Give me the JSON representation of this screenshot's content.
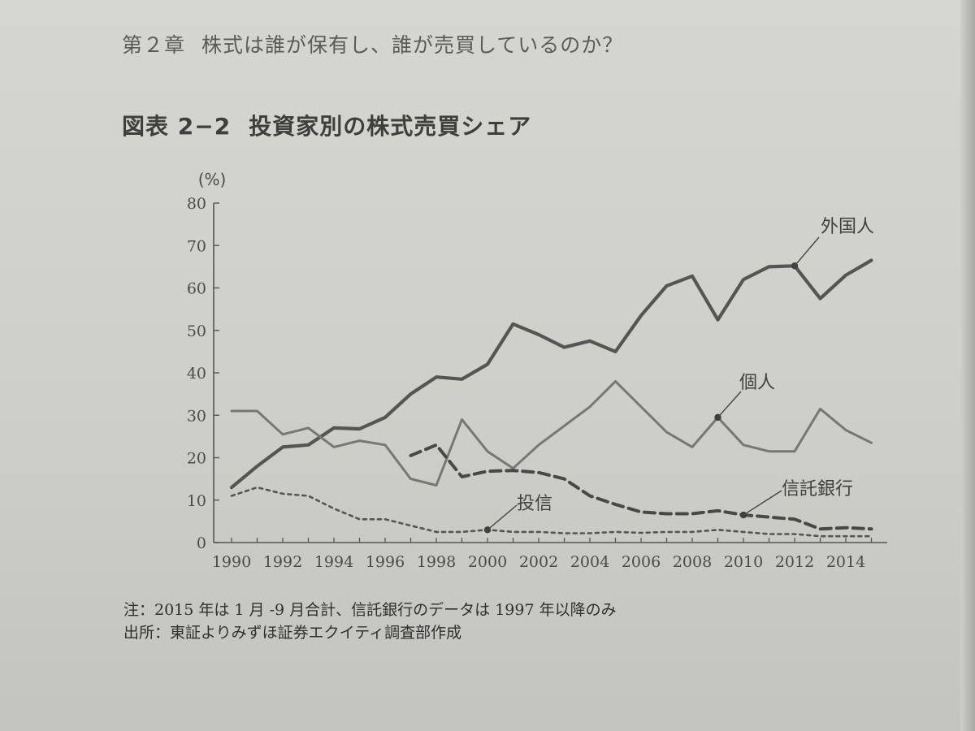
{
  "page": {
    "running_head": {
      "chapter": "第２章",
      "title": "株式は誰が保有し、誰が売買しているのか？"
    },
    "figure": {
      "number": "図表 2−2",
      "title": "投資家別の株式売買シェア"
    },
    "notes": [
      "注：2015 年は 1 月 -9 月合計、信託銀行のデータは 1997 年以降のみ",
      "出所：東証よりみずほ証券エクイティ調査部作成"
    ]
  },
  "chart_data": {
    "type": "line",
    "title": "投資家別の株式売買シェア",
    "xlabel": "",
    "ylabel": "(%)",
    "xlim": [
      1990,
      2015
    ],
    "ylim": [
      0,
      80
    ],
    "x_ticks": [
      "1990",
      "1992",
      "1994",
      "1996",
      "1998",
      "2000",
      "2002",
      "2004",
      "2006",
      "2008",
      "2010",
      "2012",
      "2014"
    ],
    "y_ticks": [
      "0",
      "10",
      "20",
      "30",
      "40",
      "50",
      "60",
      "70",
      "80"
    ],
    "grid": false,
    "legend": "direct labels",
    "series": [
      {
        "name": "外国人",
        "style": "solid-thick",
        "color": "#555555",
        "x": [
          1990,
          1991,
          1992,
          1993,
          1994,
          1995,
          1996,
          1997,
          1998,
          1999,
          2000,
          2001,
          2002,
          2003,
          2004,
          2005,
          2006,
          2007,
          2008,
          2009,
          2010,
          2011,
          2012,
          2013,
          2014,
          2015
        ],
        "y": [
          13,
          18,
          22.5,
          23,
          27,
          26.8,
          29.5,
          35,
          39,
          38.5,
          42,
          51.5,
          49,
          46,
          47.5,
          45,
          53.5,
          60.5,
          62.8,
          52.5,
          62,
          65,
          65.2,
          57.5,
          63,
          66.5
        ],
        "marker_at": 2012
      },
      {
        "name": "個人",
        "style": "solid",
        "color": "#777777",
        "x": [
          1990,
          1991,
          1992,
          1993,
          1994,
          1995,
          1996,
          1997,
          1998,
          1999,
          2000,
          2001,
          2002,
          2003,
          2004,
          2005,
          2006,
          2007,
          2008,
          2009,
          2010,
          2011,
          2012,
          2013,
          2014,
          2015
        ],
        "y": [
          31,
          31,
          25.5,
          27,
          22.5,
          24,
          23,
          15,
          13.5,
          29,
          21.5,
          17.5,
          23,
          27.5,
          32,
          38,
          32,
          26,
          22.5,
          29.5,
          23,
          21.5,
          21.5,
          31.5,
          26.5,
          23.5
        ],
        "marker_at": 2009
      },
      {
        "name": "信託銀行",
        "style": "dashed",
        "color": "#484848",
        "x": [
          1997,
          1998,
          1999,
          2000,
          2001,
          2002,
          2003,
          2004,
          2005,
          2006,
          2007,
          2008,
          2009,
          2010,
          2011,
          2012,
          2013,
          2014,
          2015
        ],
        "y": [
          20.5,
          23,
          15.5,
          16.8,
          17,
          16.5,
          15,
          11,
          9,
          7.2,
          6.8,
          6.8,
          7.5,
          6.5,
          6,
          5.5,
          3.2,
          3.5,
          3.2
        ],
        "marker_at": 2010
      },
      {
        "name": "投信",
        "style": "dotted",
        "color": "#555555",
        "x": [
          1990,
          1991,
          1992,
          1993,
          1994,
          1995,
          1996,
          1997,
          1998,
          1999,
          2000,
          2001,
          2002,
          2003,
          2004,
          2005,
          2006,
          2007,
          2008,
          2009,
          2010,
          2011,
          2012,
          2013,
          2014,
          2015
        ],
        "y": [
          11,
          13,
          11.5,
          11,
          8,
          5.5,
          5.5,
          4,
          2.5,
          2.5,
          3,
          2.5,
          2.5,
          2.2,
          2.2,
          2.5,
          2.3,
          2.5,
          2.5,
          3,
          2.5,
          2,
          2,
          1.5,
          1.5,
          1.5
        ],
        "marker_at": 2000
      }
    ]
  }
}
